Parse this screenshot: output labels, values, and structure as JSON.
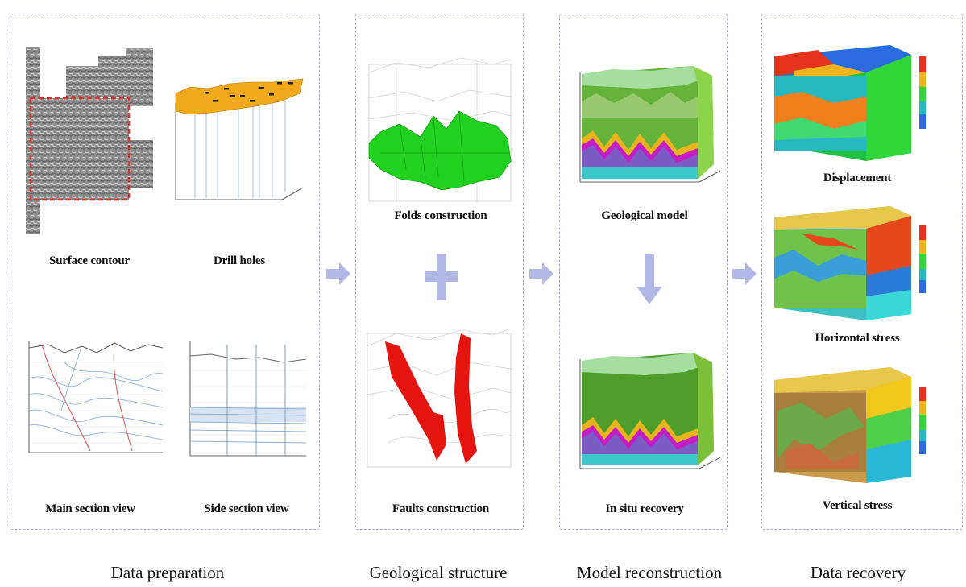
{
  "stages": {
    "data_preparation": {
      "title": "Data preparation",
      "items": {
        "surface_contour": "Surface contour",
        "drill_holes": "Drill holes",
        "main_section_view": "Main section view",
        "side_section_view": "Side section view"
      }
    },
    "geological_structure": {
      "title": "Geological structure",
      "items": {
        "folds_construction": "Folds construction",
        "faults_construction": "Faults construction"
      }
    },
    "model_reconstruction": {
      "title": "Model reconstruction",
      "items": {
        "geological_model": "Geological model",
        "in_situ_recovery": "In situ recovery"
      }
    },
    "data_recovery": {
      "title": "Data recovery",
      "items": {
        "displacement": "Displacement",
        "horizontal_stress": "Horizontal stress",
        "vertical_stress": "Vertical stress"
      }
    }
  },
  "colors": {
    "panel_border": "#a9a9d6",
    "flow_arrow": "#b3b7e6",
    "folds": "#22d11f",
    "faults": "#e4140f",
    "drill_surface": "#f0a81c"
  }
}
